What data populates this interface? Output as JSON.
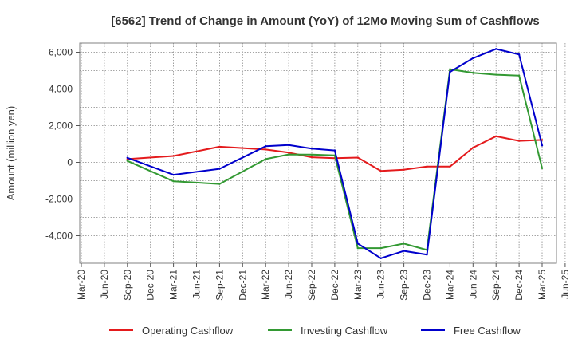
{
  "chart_data": {
    "type": "line",
    "title": "[6562]  Trend of Change in Amount (YoY) of 12Mo Moving Sum of Cashflows",
    "xlabel": "",
    "ylabel": "Amount (million yen)",
    "ylim": [
      -5500,
      6500
    ],
    "yticks": [
      6000,
      4000,
      2000,
      0,
      -2000,
      -4000
    ],
    "ytick_labels": [
      "6,000",
      "4,000",
      "2,000",
      "0",
      "-2,000",
      "-4,000"
    ],
    "grid": true,
    "legend_position": "bottom",
    "x_tick_labels": [
      "Mar-20",
      "Jun-20",
      "Sep-20",
      "Dec-20",
      "Mar-21",
      "Jun-21",
      "Sep-21",
      "Dec-21",
      "Mar-22",
      "Jun-22",
      "Sep-22",
      "Dec-22",
      "Mar-23",
      "Jun-23",
      "Sep-23",
      "Dec-23",
      "Mar-24",
      "Jun-24",
      "Sep-24",
      "Dec-24",
      "Mar-25",
      "Jun-25"
    ],
    "categories": [
      "Sep-20",
      "Mar-21",
      "Sep-21",
      "Mar-22",
      "Jun-22",
      "Sep-22",
      "Dec-22",
      "Mar-23",
      "Jun-23",
      "Sep-23",
      "Dec-23",
      "Mar-24",
      "Jun-24",
      "Sep-24",
      "Dec-24",
      "Mar-25"
    ],
    "series": [
      {
        "name": "Operating Cashflow",
        "color": "#e41a1c",
        "x": [
          "Sep-20",
          "Mar-21",
          "Sep-21",
          "Mar-22",
          "Jun-22",
          "Sep-22",
          "Dec-22",
          "Mar-23",
          "Jun-23",
          "Sep-23",
          "Dec-23",
          "Mar-24",
          "Jun-24",
          "Sep-24",
          "Dec-24",
          "Mar-25"
        ],
        "values": [
          180,
          350,
          850,
          700,
          530,
          280,
          230,
          260,
          -470,
          -400,
          -230,
          -230,
          800,
          1420,
          1170,
          1220
        ]
      },
      {
        "name": "Investing Cashflow",
        "color": "#339933",
        "x": [
          "Sep-20",
          "Mar-21",
          "Sep-21",
          "Mar-22",
          "Jun-22",
          "Sep-22",
          "Dec-22",
          "Mar-23",
          "Jun-23",
          "Sep-23",
          "Dec-23",
          "Mar-24",
          "Jun-24",
          "Sep-24",
          "Dec-24",
          "Mar-25"
        ],
        "values": [
          80,
          -1030,
          -1180,
          180,
          430,
          420,
          380,
          -4680,
          -4680,
          -4430,
          -4780,
          5080,
          4880,
          4780,
          4730,
          -320
        ]
      },
      {
        "name": "Free Cashflow",
        "color": "#0000cc",
        "x": [
          "Sep-20",
          "Mar-21",
          "Sep-21",
          "Mar-22",
          "Jun-22",
          "Sep-22",
          "Dec-22",
          "Mar-23",
          "Jun-23",
          "Sep-23",
          "Dec-23",
          "Mar-24",
          "Jun-24",
          "Sep-24",
          "Dec-24",
          "Mar-25"
        ],
        "values": [
          250,
          -680,
          -350,
          880,
          950,
          750,
          650,
          -4430,
          -5230,
          -4830,
          -5030,
          4930,
          5680,
          6180,
          5880,
          920
        ]
      }
    ]
  }
}
